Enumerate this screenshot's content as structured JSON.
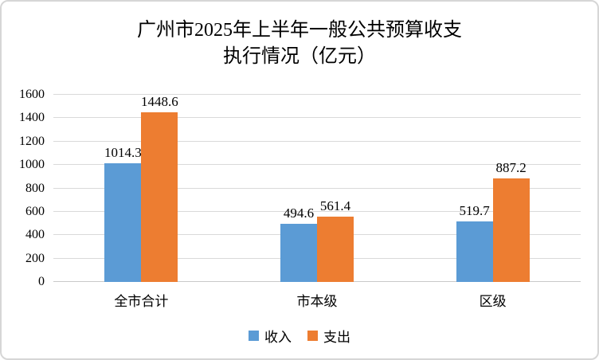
{
  "chart_data": {
    "type": "bar",
    "title_line1": "广州市2025年上半年一般公共预算收支",
    "title_line2": "执行情况（亿元）",
    "categories": [
      "全市合计",
      "市本级",
      "区级"
    ],
    "series": [
      {
        "name": "收入",
        "color": "#5B9BD5",
        "values": [
          1014.3,
          494.6,
          519.7
        ]
      },
      {
        "name": "支出",
        "color": "#ED7D31",
        "values": [
          1448.6,
          561.4,
          887.2
        ]
      }
    ],
    "ylim": [
      0,
      1600
    ],
    "y_ticks": [
      0,
      200,
      400,
      600,
      800,
      1000,
      1200,
      1400,
      1600
    ],
    "grid": "horizontal",
    "legend_position": "bottom"
  },
  "colors": {
    "background": "#FFFFFF",
    "border": "#D6D6D6",
    "gridline": "#D9D9D9",
    "axis_line": "#C9C9C9",
    "text": "#000000"
  }
}
